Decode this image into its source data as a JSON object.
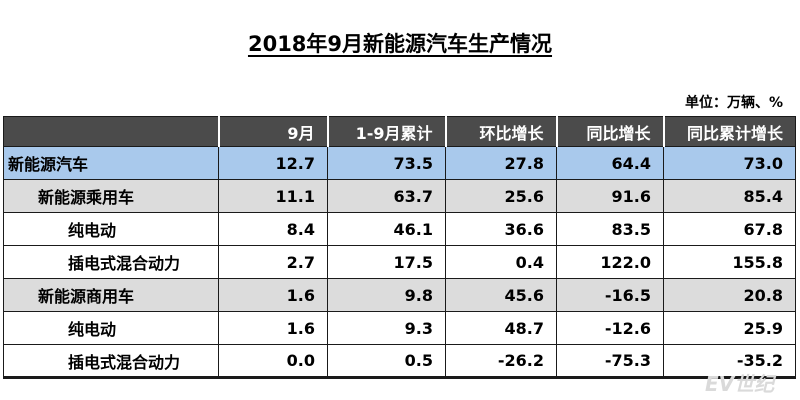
{
  "title": "2018年9月新能源汽车生产情况",
  "unit": "单位：万辆、%",
  "watermark": "EV世纪",
  "chart_data": {
    "type": "table",
    "title": "2018年9月新能源汽车生产情况",
    "unit": "单位：万辆、%",
    "columns": [
      "",
      "9月",
      "1-9月累计",
      "环比增长",
      "同比增长",
      "同比累计增长"
    ],
    "rows": [
      {
        "label": "新能源汽车",
        "level": 0,
        "values": [
          "12.7",
          "73.5",
          "27.8",
          "64.4",
          "73.0"
        ]
      },
      {
        "label": "新能源乘用车",
        "level": 1,
        "values": [
          "11.1",
          "63.7",
          "25.6",
          "91.6",
          "85.4"
        ]
      },
      {
        "label": "纯电动",
        "level": 2,
        "values": [
          "8.4",
          "46.1",
          "36.6",
          "83.5",
          "67.8"
        ]
      },
      {
        "label": "插电式混合动力",
        "level": 2,
        "values": [
          "2.7",
          "17.5",
          "0.4",
          "122.0",
          "155.8"
        ]
      },
      {
        "label": "新能源商用车",
        "level": 1,
        "values": [
          "1.6",
          "9.8",
          "45.6",
          "-16.5",
          "20.8"
        ]
      },
      {
        "label": "纯电动",
        "level": 2,
        "values": [
          "1.6",
          "9.3",
          "48.7",
          "-12.6",
          "25.9"
        ]
      },
      {
        "label": "插电式混合动力",
        "level": 2,
        "values": [
          "0.0",
          "0.5",
          "-26.2",
          "-75.3",
          "-35.2"
        ]
      }
    ]
  },
  "colors": {
    "header_bg": "#4b4b4b",
    "top_row_bg": "#a9c9ec",
    "sub_row_bg": "#dcdcdc",
    "leaf_row_bg": "#ffffff"
  }
}
